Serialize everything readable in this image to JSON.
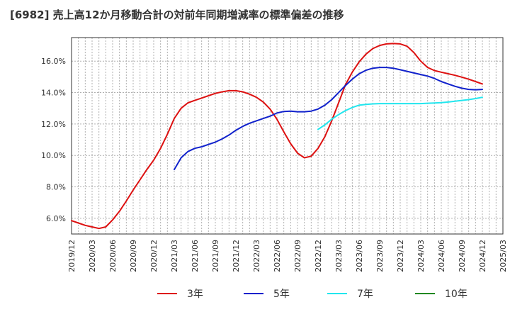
{
  "chart_data": {
    "type": "line",
    "title": "[6982]  売上高12か月移動合計の対前年同期増減率の標準偏差の推移",
    "xlabel": "",
    "ylabel": "",
    "y_unit": "%",
    "ylim": [
      5.0,
      17.5
    ],
    "y_ticks": [
      6.0,
      8.0,
      10.0,
      12.0,
      14.0,
      16.0
    ],
    "y_tick_labels": [
      "6.0%",
      "8.0%",
      "10.0%",
      "12.0%",
      "14.0%",
      "16.0%"
    ],
    "x_tick_labels": [
      "2019/12",
      "2020/03",
      "2020/06",
      "2020/09",
      "2020/12",
      "2021/03",
      "2021/06",
      "2021/09",
      "2021/12",
      "2022/03",
      "2022/06",
      "2022/09",
      "2022/12",
      "2023/03",
      "2023/06",
      "2023/09",
      "2023/12",
      "2024/03",
      "2024/06",
      "2024/09",
      "2024/12",
      "2025/03"
    ],
    "grid": true,
    "legend_position": "bottom",
    "series": [
      {
        "name": "3年",
        "color": "#dd1111",
        "x": [
          "2019/12",
          "2020/01",
          "2020/02",
          "2020/03",
          "2020/04",
          "2020/05",
          "2020/06",
          "2020/07",
          "2020/08",
          "2020/09",
          "2020/10",
          "2020/11",
          "2020/12",
          "2021/01",
          "2021/02",
          "2021/03",
          "2021/04",
          "2021/05",
          "2021/06",
          "2021/07",
          "2021/08",
          "2021/09",
          "2021/10",
          "2021/11",
          "2021/12",
          "2022/01",
          "2022/02",
          "2022/03",
          "2022/04",
          "2022/05",
          "2022/06",
          "2022/07",
          "2022/08",
          "2022/09",
          "2022/10",
          "2022/11",
          "2022/12",
          "2023/01",
          "2023/02",
          "2023/03",
          "2023/04",
          "2023/05",
          "2023/06",
          "2023/07",
          "2023/08",
          "2023/09",
          "2023/10",
          "2023/11",
          "2023/12",
          "2024/01",
          "2024/02",
          "2024/03",
          "2024/04",
          "2024/05",
          "2024/06",
          "2024/07",
          "2024/08",
          "2024/09",
          "2024/10",
          "2024/11",
          "2024/12"
        ],
        "values": [
          5.85,
          5.7,
          5.55,
          5.45,
          5.35,
          5.45,
          5.9,
          6.45,
          7.1,
          7.8,
          8.45,
          9.1,
          9.7,
          10.45,
          11.35,
          12.35,
          13.0,
          13.35,
          13.5,
          13.65,
          13.8,
          13.95,
          14.05,
          14.12,
          14.12,
          14.05,
          13.9,
          13.7,
          13.4,
          12.95,
          12.3,
          11.5,
          10.75,
          10.15,
          9.85,
          9.95,
          10.45,
          11.2,
          12.2,
          13.35,
          14.5,
          15.3,
          15.95,
          16.45,
          16.8,
          17.0,
          17.1,
          17.12,
          17.1,
          16.95,
          16.55,
          16.0,
          15.6,
          15.4,
          15.3,
          15.2,
          15.1,
          14.98,
          14.85,
          14.7,
          14.55
        ]
      },
      {
        "name": "5年",
        "color": "#1122cc",
        "x": [
          "2021/03",
          "2021/04",
          "2021/05",
          "2021/06",
          "2021/07",
          "2021/08",
          "2021/09",
          "2021/10",
          "2021/11",
          "2021/12",
          "2022/01",
          "2022/02",
          "2022/03",
          "2022/04",
          "2022/05",
          "2022/06",
          "2022/07",
          "2022/08",
          "2022/09",
          "2022/10",
          "2022/11",
          "2022/12",
          "2023/01",
          "2023/02",
          "2023/03",
          "2023/04",
          "2023/05",
          "2023/06",
          "2023/07",
          "2023/08",
          "2023/09",
          "2023/10",
          "2023/11",
          "2023/12",
          "2024/01",
          "2024/02",
          "2024/03",
          "2024/04",
          "2024/05",
          "2024/06",
          "2024/07",
          "2024/08",
          "2024/09",
          "2024/10",
          "2024/11",
          "2024/12"
        ],
        "values": [
          9.1,
          9.85,
          10.25,
          10.45,
          10.55,
          10.7,
          10.85,
          11.05,
          11.3,
          11.6,
          11.85,
          12.05,
          12.2,
          12.35,
          12.5,
          12.7,
          12.8,
          12.82,
          12.78,
          12.78,
          12.82,
          12.95,
          13.2,
          13.55,
          14.0,
          14.45,
          14.85,
          15.2,
          15.42,
          15.55,
          15.6,
          15.6,
          15.55,
          15.45,
          15.35,
          15.25,
          15.15,
          15.05,
          14.9,
          14.7,
          14.55,
          14.4,
          14.28,
          14.2,
          14.18,
          14.2
        ]
      },
      {
        "name": "7年",
        "color": "#22e6ee",
        "x": [
          "2022/12",
          "2023/01",
          "2023/02",
          "2023/03",
          "2023/04",
          "2023/05",
          "2023/06",
          "2023/07",
          "2023/08",
          "2023/09",
          "2023/10",
          "2023/11",
          "2023/12",
          "2024/01",
          "2024/02",
          "2024/03",
          "2024/04",
          "2024/05",
          "2024/06",
          "2024/07",
          "2024/08",
          "2024/09",
          "2024/10",
          "2024/11",
          "2024/12"
        ],
        "values": [
          11.65,
          11.95,
          12.3,
          12.6,
          12.85,
          13.05,
          13.2,
          13.25,
          13.28,
          13.3,
          13.3,
          13.3,
          13.3,
          13.3,
          13.3,
          13.3,
          13.32,
          13.34,
          13.36,
          13.4,
          13.45,
          13.5,
          13.55,
          13.62,
          13.7
        ]
      },
      {
        "name": "10年",
        "color": "#228822",
        "x": [],
        "values": []
      }
    ]
  }
}
